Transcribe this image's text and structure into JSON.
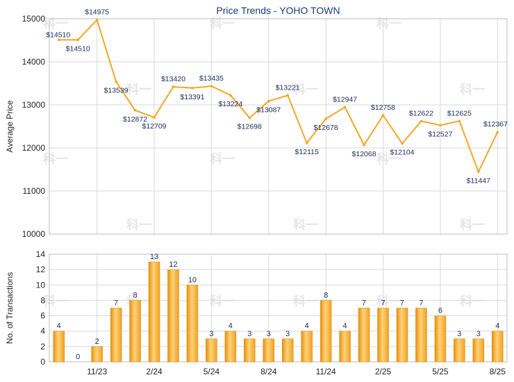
{
  "chart_data": [
    {
      "type": "line",
      "title": "Price Trends - YOHO TOWN",
      "xlabel": "",
      "ylabel": "Average Price",
      "ylim": [
        10000,
        15000
      ],
      "yticks": [
        "10000",
        "11000",
        "12000",
        "13000",
        "14000",
        "15000"
      ],
      "grid": true,
      "color": "#f5a623",
      "series": [
        {
          "values": [
            14510,
            14510,
            14975,
            13539,
            12872,
            12709,
            13420,
            13391,
            13435,
            13224,
            12698,
            13087,
            13221,
            12115,
            12678,
            12947,
            12068,
            12758,
            12104,
            12622,
            12527,
            12625,
            11447,
            12367
          ],
          "labels": [
            "$14510",
            "$14510",
            "$14975",
            "$13539",
            "$12872",
            "$12709",
            "$13420",
            "$13391",
            "$13435",
            "$13224",
            "$12698",
            "$13087",
            "$13221",
            "$12115",
            "$12678",
            "$12947",
            "$12068",
            "$12758",
            "$12104",
            "$12622",
            "$12527",
            "$12625",
            "$11447",
            "$12367"
          ]
        }
      ]
    },
    {
      "type": "bar",
      "xlabel": "",
      "ylabel": "No. of Transactions",
      "ylim": [
        0,
        14
      ],
      "yticks": [
        "0",
        "2",
        "4",
        "6",
        "8",
        "10",
        "12",
        "14"
      ],
      "xticks": [
        "11/23",
        "2/24",
        "5/24",
        "8/24",
        "11/24",
        "2/25",
        "5/25",
        "8/25"
      ],
      "grid": true,
      "color": "#f5a623",
      "values": [
        4,
        0,
        2,
        7,
        8,
        13,
        12,
        10,
        3,
        4,
        3,
        3,
        3,
        4,
        8,
        4,
        7,
        7,
        7,
        7,
        6,
        3,
        3,
        4
      ]
    }
  ],
  "watermark": "科一"
}
